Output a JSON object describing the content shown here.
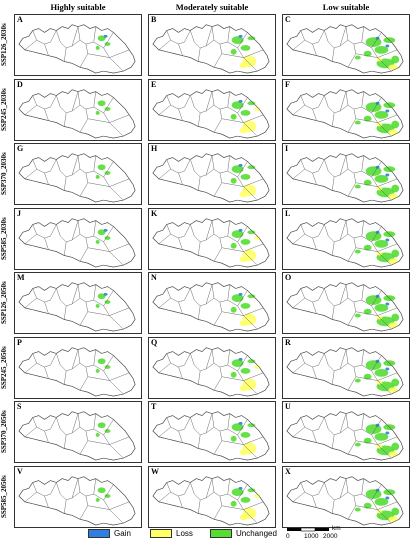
{
  "columns": [
    "Highly suitable",
    "Moderately suitable",
    "Low suitable"
  ],
  "rows": [
    {
      "label": "SSP126_2030s",
      "letters": [
        "A",
        "B",
        "C"
      ]
    },
    {
      "label": "SSP245_2030s",
      "letters": [
        "D",
        "E",
        "F"
      ]
    },
    {
      "label": "SSP370_2030s",
      "letters": [
        "G",
        "H",
        "I"
      ]
    },
    {
      "label": "SSP585_2030s",
      "letters": [
        "J",
        "K",
        "L"
      ]
    },
    {
      "label": "SSP126_2050s",
      "letters": [
        "M",
        "N",
        "O"
      ]
    },
    {
      "label": "SSP245_2050s",
      "letters": [
        "P",
        "Q",
        "R"
      ]
    },
    {
      "label": "SSP370_2050s",
      "letters": [
        "S",
        "T",
        "U"
      ]
    },
    {
      "label": "SSP585_2050s",
      "letters": [
        "V",
        "W",
        "X"
      ]
    }
  ],
  "legend": [
    {
      "label": "Gain",
      "color": "#2f7fe0"
    },
    {
      "label": "Loss",
      "color": "#ffff66"
    },
    {
      "label": "Unchanged",
      "color": "#55dd33"
    }
  ],
  "scale": {
    "unit": "km",
    "ticks": [
      "0",
      "1000",
      "2000"
    ]
  }
}
